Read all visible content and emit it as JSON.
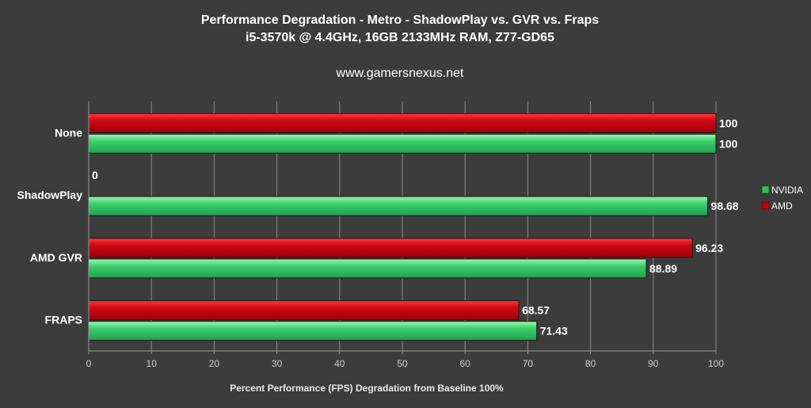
{
  "chart_data": {
    "type": "bar",
    "orientation": "horizontal",
    "title": "Performance Degradation - Metro - ShadowPlay vs. GVR vs. Fraps",
    "subtitle": "i5-3570k @ 4.4GHz, 16GB 2133MHz RAM, Z77-GD65",
    "site": "www.gamersnexus.net",
    "xlabel": "Percent Performance (FPS) Degradation from Baseline 100%",
    "ylabel": "",
    "xlim": [
      0,
      100
    ],
    "xticks": [
      0,
      10,
      20,
      30,
      40,
      50,
      60,
      70,
      80,
      90,
      100
    ],
    "categories": [
      "None",
      "ShadowPlay",
      "AMD GVR",
      "FRAPS"
    ],
    "series": [
      {
        "name": "AMD",
        "color": "#c0000c",
        "values": [
          100,
          0,
          96.23,
          68.57
        ]
      },
      {
        "name": "NVIDIA",
        "color": "#2fbf5f",
        "values": [
          100,
          98.68,
          88.89,
          71.43
        ]
      }
    ],
    "value_labels": {
      "AMD": [
        "100",
        "0",
        "96.23",
        "68.57"
      ],
      "NVIDIA": [
        "100",
        "98.68",
        "88.89",
        "71.43"
      ]
    },
    "legend": {
      "position": "right",
      "order": [
        "NVIDIA",
        "AMD"
      ]
    },
    "grid": true
  }
}
